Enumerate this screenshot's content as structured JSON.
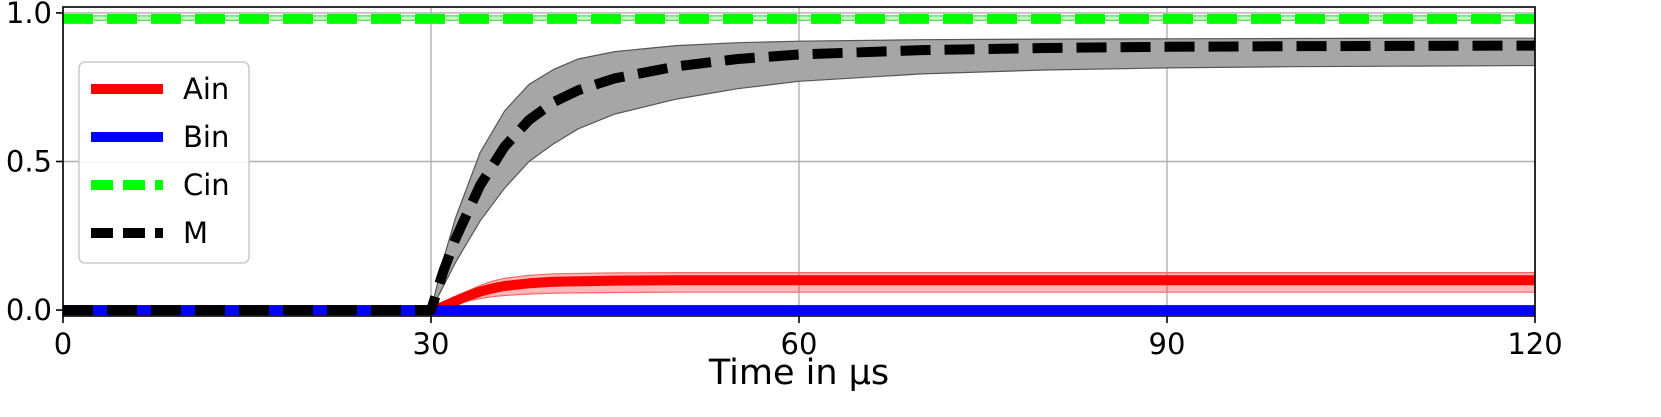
{
  "chart_data": {
    "type": "line",
    "title": "",
    "xlabel": "Time in μs",
    "ylabel": "",
    "xlim": [
      0,
      120
    ],
    "ylim": [
      -0.02,
      1.02
    ],
    "x_ticks": [
      0,
      30,
      60,
      90,
      120
    ],
    "x_tick_labels": [
      "0",
      "30",
      "60",
      "90",
      "120"
    ],
    "y_ticks": [
      0.0,
      0.5,
      1.0
    ],
    "y_tick_labels": [
      "0.0",
      "0.5",
      "1.0"
    ],
    "grid": true,
    "legend_position": "center-left",
    "series": [
      {
        "name": "Ain",
        "color": "#ff0000",
        "style": "solid",
        "x": [
          0,
          30,
          31,
          32,
          33,
          34,
          35,
          36,
          38,
          40,
          45,
          50,
          60,
          90,
          120
        ],
        "y": [
          0.0,
          0.0,
          0.012,
          0.03,
          0.048,
          0.062,
          0.073,
          0.081,
          0.09,
          0.095,
          0.099,
          0.1,
          0.1,
          0.1,
          0.1
        ],
        "band_lower": [
          0.0,
          0.0,
          0.006,
          0.018,
          0.03,
          0.039,
          0.045,
          0.049,
          0.054,
          0.057,
          0.059,
          0.06,
          0.06,
          0.06,
          0.06
        ],
        "band_upper": [
          0.0,
          0.0,
          0.016,
          0.04,
          0.064,
          0.083,
          0.097,
          0.107,
          0.117,
          0.122,
          0.125,
          0.126,
          0.126,
          0.126,
          0.126
        ]
      },
      {
        "name": "Bin",
        "color": "#0000ff",
        "style": "solid",
        "x": [
          0,
          120
        ],
        "y": [
          0.0,
          0.0
        ]
      },
      {
        "name": "Cin",
        "color": "#00ff00",
        "style": "dashed",
        "x": [
          0,
          120
        ],
        "y": [
          0.98,
          0.98
        ],
        "band_lower": [
          0.975,
          0.975
        ],
        "band_upper": [
          0.99,
          0.99
        ]
      },
      {
        "name": "M",
        "color": "#000000",
        "style": "dashed",
        "x": [
          0,
          30,
          31,
          32,
          34,
          36,
          38,
          40,
          42,
          45,
          50,
          55,
          60,
          70,
          80,
          90,
          100,
          110,
          120
        ],
        "y": [
          0.0,
          0.0,
          0.13,
          0.24,
          0.42,
          0.55,
          0.64,
          0.7,
          0.74,
          0.78,
          0.82,
          0.845,
          0.86,
          0.875,
          0.882,
          0.886,
          0.888,
          0.889,
          0.89
        ],
        "band_lower": [
          0.0,
          0.0,
          0.08,
          0.16,
          0.3,
          0.41,
          0.5,
          0.56,
          0.61,
          0.66,
          0.71,
          0.745,
          0.77,
          0.795,
          0.808,
          0.815,
          0.819,
          0.821,
          0.823
        ],
        "band_upper": [
          0.0,
          0.0,
          0.17,
          0.31,
          0.53,
          0.67,
          0.76,
          0.81,
          0.845,
          0.87,
          0.89,
          0.9,
          0.905,
          0.91,
          0.912,
          0.913,
          0.914,
          0.915,
          0.915
        ]
      }
    ]
  }
}
